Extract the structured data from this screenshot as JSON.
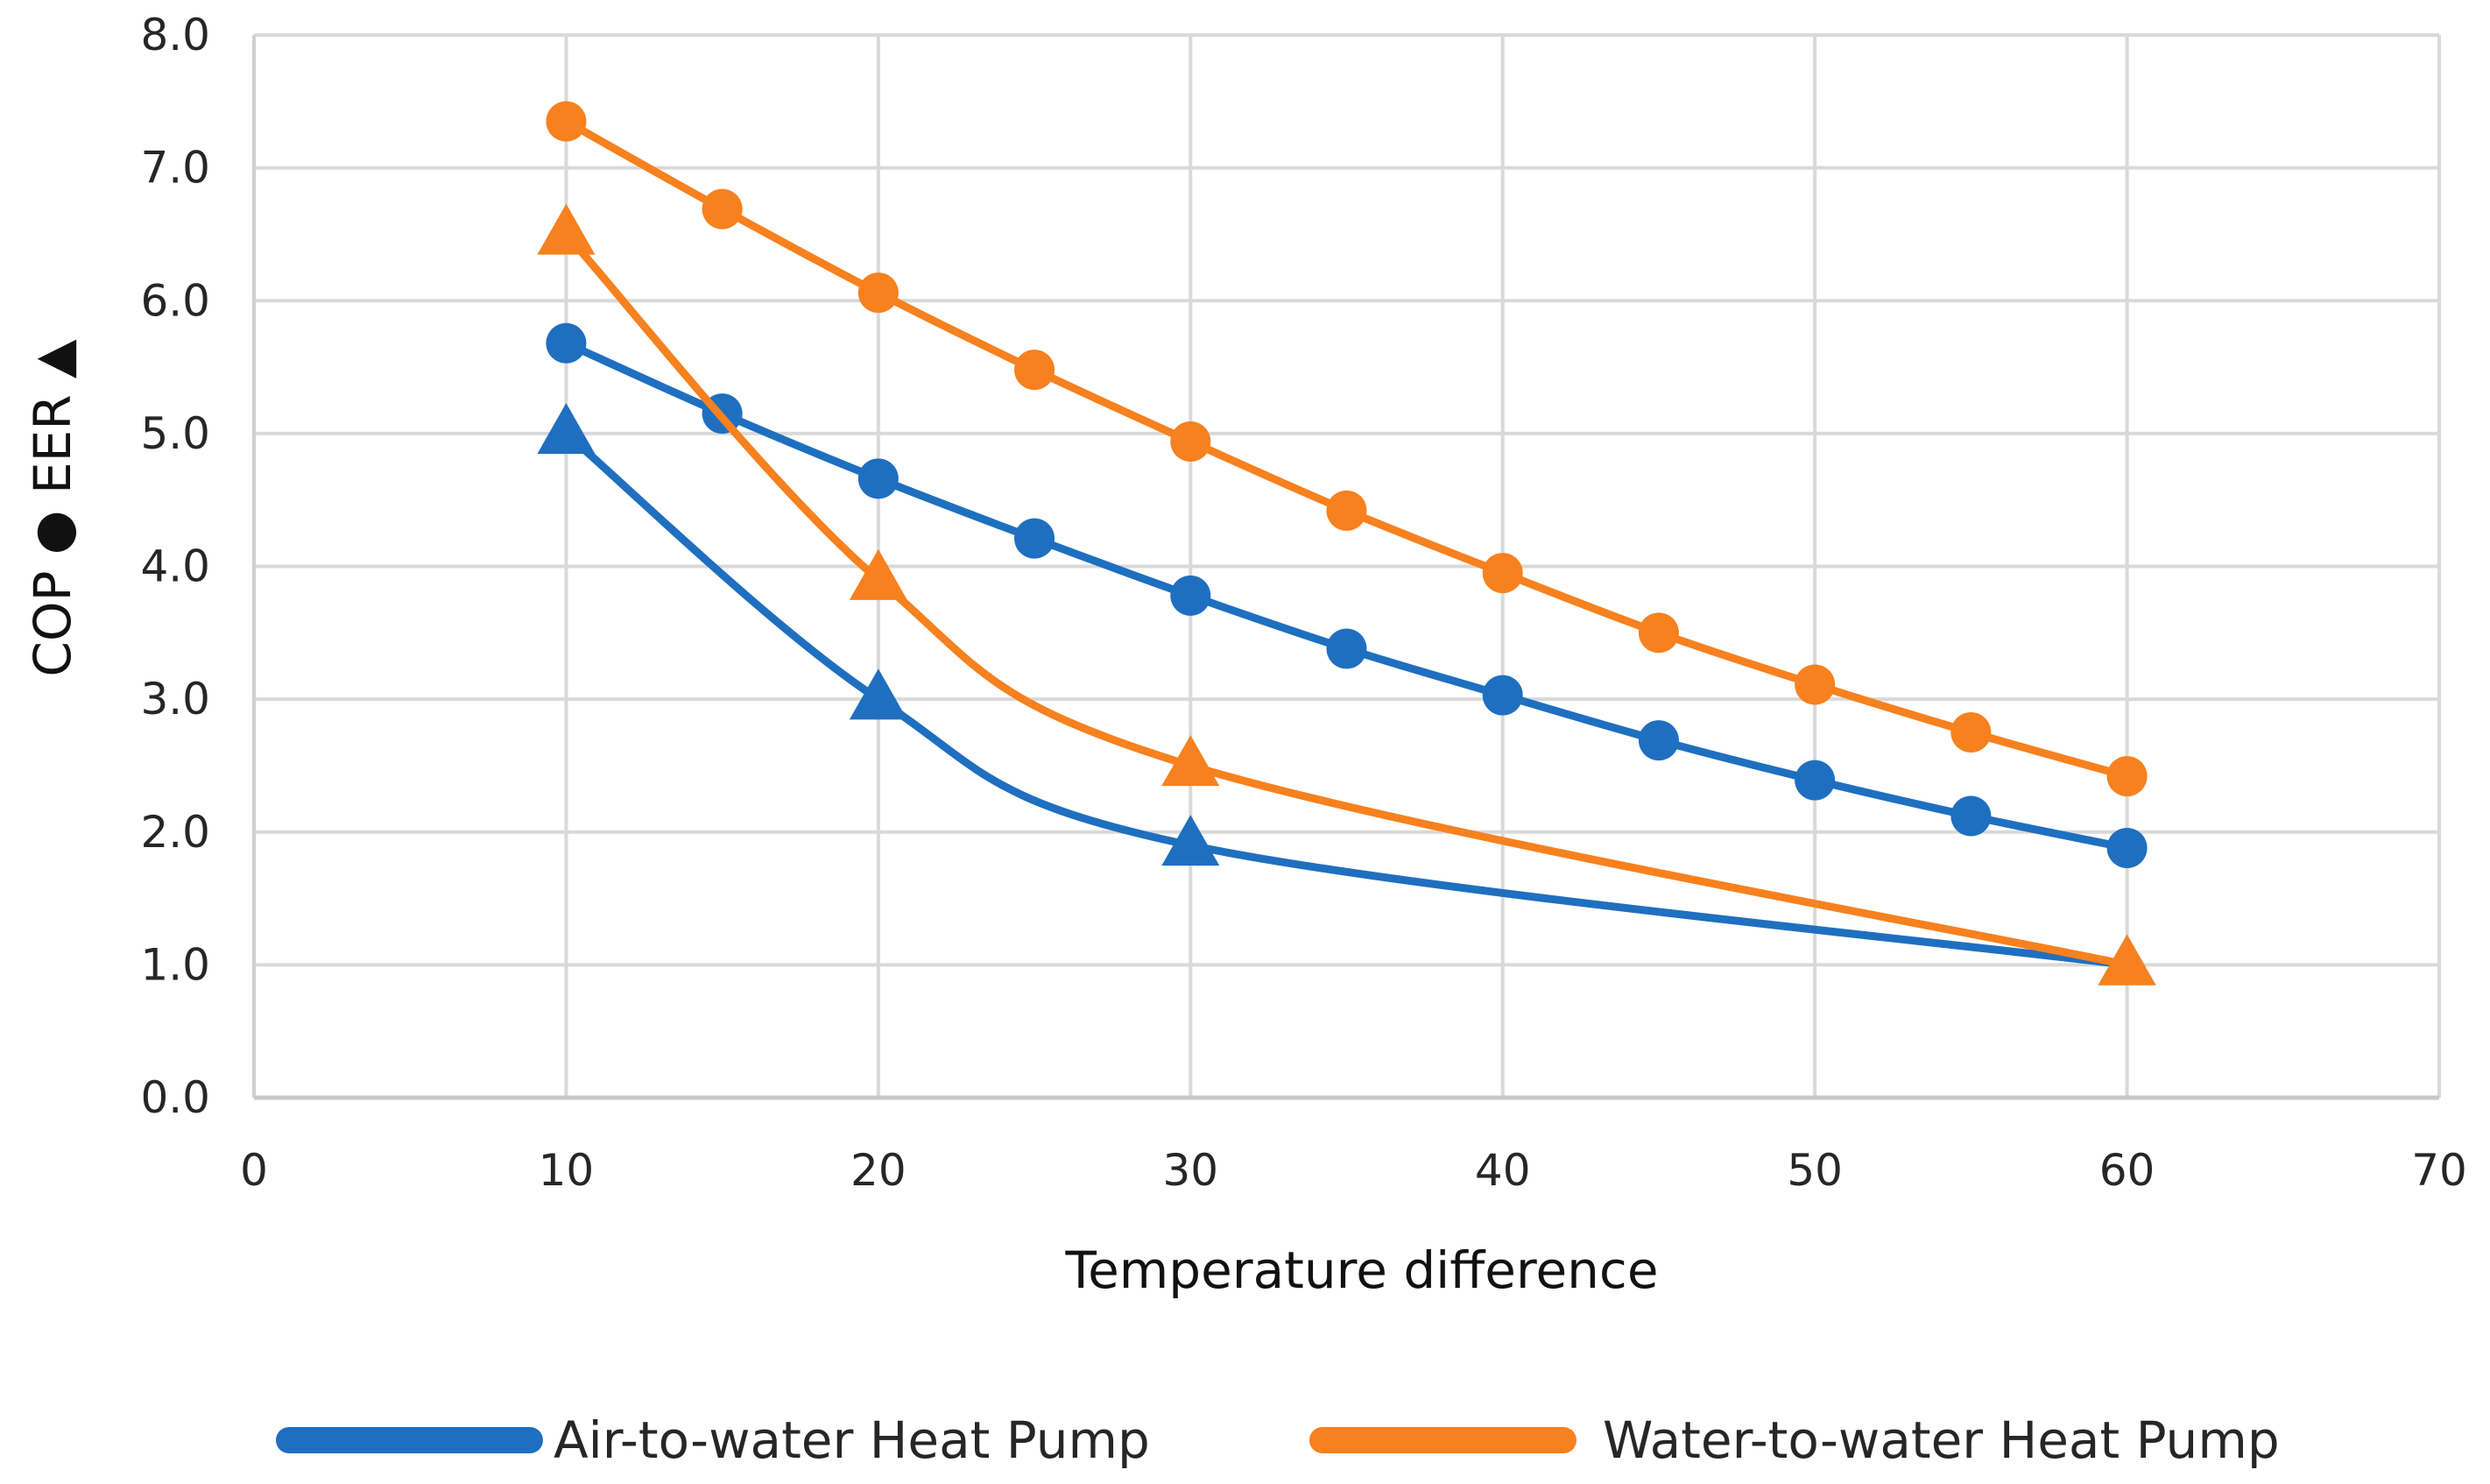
{
  "chart_data": {
    "type": "line",
    "xlabel": "Temperature difference",
    "ylabel": "COP ●  EER ▲",
    "xlim": [
      0,
      70
    ],
    "ylim": [
      0,
      8
    ],
    "x_ticks": [
      "0",
      "10",
      "20",
      "30",
      "40",
      "50",
      "60",
      "70"
    ],
    "y_ticks": [
      "0.0",
      "1.0",
      "2.0",
      "3.0",
      "4.0",
      "5.0",
      "6.0",
      "7.0",
      "8.0"
    ],
    "grid": true,
    "legend_position": "bottom",
    "legend": [
      {
        "label": "Air-to-water Heat Pump",
        "color": "#1f6fc0"
      },
      {
        "label": "Water-to-water Heat Pump",
        "color": "#f7811e"
      }
    ],
    "series": [
      {
        "legend_entry": "Air-to-water Heat Pump",
        "metric": "COP",
        "marker": "circle",
        "color": "#1f6fc0",
        "x": [
          10,
          15,
          20,
          25,
          30,
          35,
          40,
          45,
          50,
          55,
          60
        ],
        "y": [
          5.68,
          5.15,
          4.66,
          4.21,
          3.78,
          3.38,
          3.03,
          2.69,
          2.39,
          2.12,
          1.88
        ]
      },
      {
        "legend_entry": "Water-to-water Heat Pump",
        "metric": "COP",
        "marker": "circle",
        "color": "#f7811e",
        "x": [
          10,
          15,
          20,
          25,
          30,
          35,
          40,
          45,
          50,
          55,
          60
        ],
        "y": [
          7.35,
          6.69,
          6.06,
          5.48,
          4.94,
          4.42,
          3.95,
          3.5,
          3.11,
          2.75,
          2.42
        ]
      },
      {
        "legend_entry": "Air-to-water Heat Pump",
        "metric": "EER",
        "marker": "triangle",
        "color": "#1f6fc0",
        "x": [
          10,
          20,
          30,
          60
        ],
        "y": [
          5.0,
          3.0,
          1.9,
          1.0
        ]
      },
      {
        "legend_entry": "Water-to-water Heat Pump",
        "metric": "EER",
        "marker": "triangle",
        "color": "#f7811e",
        "x": [
          10,
          20,
          30,
          60
        ],
        "y": [
          6.5,
          3.9,
          2.5,
          1.0
        ]
      }
    ]
  }
}
